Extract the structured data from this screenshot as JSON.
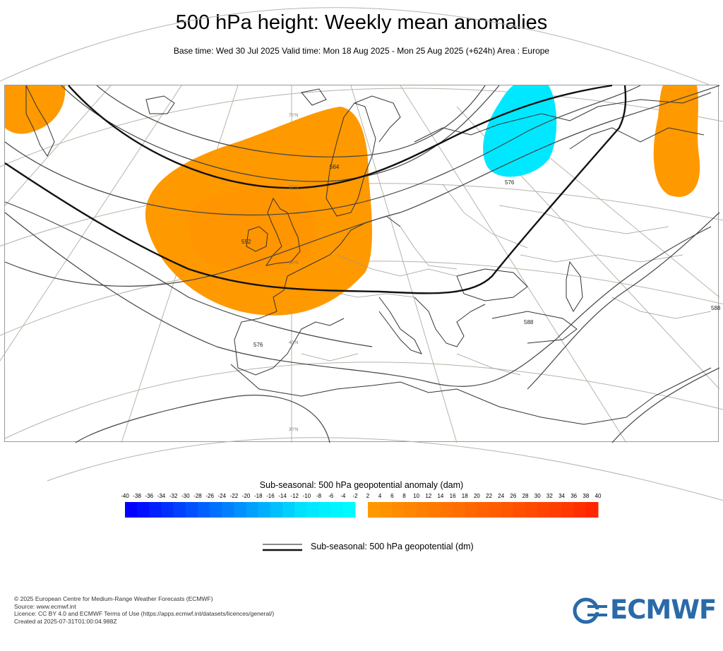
{
  "header": {
    "title": "500 hPa height: Weekly mean anomalies",
    "subtitle": "Base time: Wed 30 Jul 2025 Valid time: Mon 18 Aug 2025 - Mon 25 Aug 2025 (+624h) Area : Europe"
  },
  "map": {
    "area": "Europe",
    "contour_labels": [
      "552",
      "564",
      "576",
      "576",
      "588",
      "588"
    ],
    "latitude_labels": [
      "30°N",
      "40°N",
      "50°N",
      "60°N",
      "70°N"
    ],
    "anomalies": [
      {
        "region": "British Isles and North Sea",
        "sign": "positive",
        "level_dam": "2 to 4"
      },
      {
        "region": "Greenland",
        "sign": "positive",
        "level_dam": "2 to 4"
      },
      {
        "region": "Western Siberia",
        "sign": "positive",
        "level_dam": "2 to 4"
      },
      {
        "region": "Northwestern Russia",
        "sign": "negative",
        "level_dam": "-4 to -2"
      }
    ]
  },
  "anomaly_legend": {
    "title": "Sub-seasonal: 500 hPa geopotential anomaly (dam)",
    "ticks": [
      "-40",
      "-38",
      "-36",
      "-34",
      "-32",
      "-30",
      "-28",
      "-26",
      "-24",
      "-22",
      "-20",
      "-18",
      "-16",
      "-14",
      "-12",
      "-10",
      "-8",
      "-6",
      "-4",
      "-2",
      "2",
      "4",
      "6",
      "8",
      "10",
      "12",
      "14",
      "16",
      "18",
      "20",
      "22",
      "24",
      "26",
      "28",
      "30",
      "32",
      "34",
      "36",
      "38",
      "40"
    ],
    "negative_colors": [
      "#0000ff",
      "#0010ff",
      "#0020ff",
      "#0030ff",
      "#0040ff",
      "#0050ff",
      "#0060ff",
      "#0070ff",
      "#0080ff",
      "#0090ff",
      "#00a0ff",
      "#00b0ff",
      "#00c0ff",
      "#00d0ff",
      "#00e0ff",
      "#00e8ff",
      "#00f0ff",
      "#00f6ff",
      "#00fbff"
    ],
    "positive_colors": [
      "#ff9900",
      "#ff9200",
      "#ff8c00",
      "#ff8600",
      "#ff8000",
      "#ff7a00",
      "#ff7400",
      "#ff6e00",
      "#ff6800",
      "#ff6200",
      "#ff5c00",
      "#ff5600",
      "#ff5000",
      "#ff4a00",
      "#ff4400",
      "#ff3e00",
      "#ff3800",
      "#ff2f00",
      "#ff2600"
    ]
  },
  "contour_legend": {
    "label": "Sub-seasonal: 500 hPa geopotential (dm)"
  },
  "footer": {
    "lines": [
      "© 2025 European Centre for Medium-Range Weather Forecasts (ECMWF)",
      "Source: www.ecmwf.int",
      "Licence: CC BY 4.0 and ECMWF Terms of Use (https://apps.ecmwf.int/datasets/licences/general/)",
      "Created at 2025-07-31T01:00:04.988Z"
    ]
  },
  "logo": {
    "text": "ECMWF",
    "color": "#2a6aa8"
  }
}
